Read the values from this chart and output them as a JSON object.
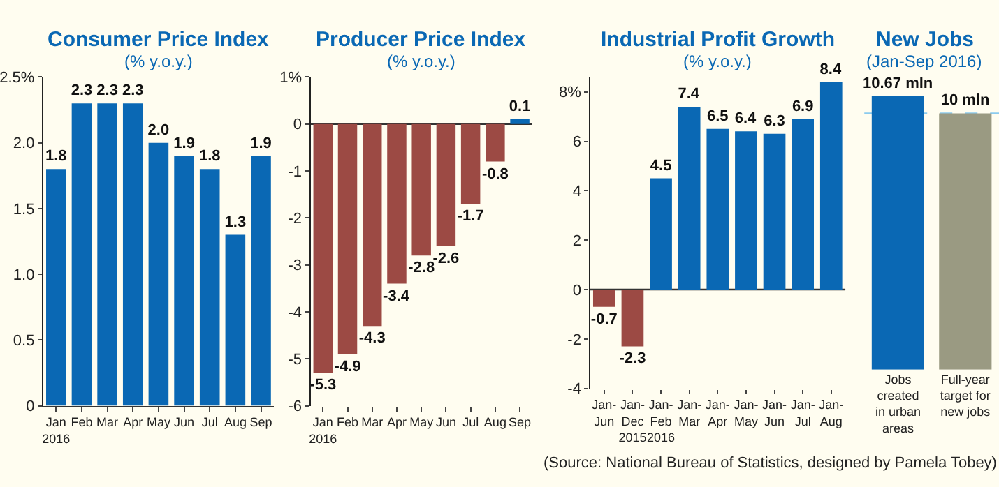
{
  "chart_data": [
    {
      "type": "bar",
      "title": "Consumer Price Index",
      "subtitle": "(% y.o.y.)",
      "categories": [
        "Jan\n2016",
        "Feb",
        "Mar",
        "Apr",
        "May",
        "Jun",
        "Jul",
        "Aug",
        "Sep"
      ],
      "values": [
        1.8,
        2.3,
        2.3,
        2.3,
        2.0,
        1.9,
        1.8,
        1.3,
        1.9
      ],
      "color": "#0a68b4",
      "value_labels": [
        "1.8",
        "2.3",
        "2.3",
        "2.3",
        "2.0",
        "1.9",
        "1.8",
        "1.3",
        "1.9"
      ],
      "ylim": [
        0,
        2.5
      ],
      "yticks": [
        0,
        0.5,
        {
          "value": 1.0,
          "label": "1.0"
        },
        1.5,
        {
          "value": 2.0,
          "label": "2.0"
        },
        {
          "value": 2.5,
          "label": "2.5%"
        }
      ],
      "grid": false
    },
    {
      "type": "bar",
      "title": "Producer Price Index",
      "subtitle": "(% y.o.y.)",
      "categories": [
        "Jan\n2016",
        "Feb",
        "Mar",
        "Apr",
        "May",
        "Jun",
        "Jul",
        "Aug",
        "Sep"
      ],
      "values": [
        -5.3,
        -4.9,
        -4.3,
        -3.4,
        -2.8,
        -2.6,
        -1.7,
        -0.8,
        0.1
      ],
      "colors": [
        "#9c4a44",
        "#9c4a44",
        "#9c4a44",
        "#9c4a44",
        "#9c4a44",
        "#9c4a44",
        "#9c4a44",
        "#9c4a44",
        "#0a68b4"
      ],
      "data_labels": true,
      "ylim": [
        -6,
        1
      ],
      "yticks": [
        -6,
        -5,
        -4,
        -3,
        -2,
        -1,
        0,
        {
          "value": 1,
          "label": "1%"
        }
      ],
      "grid": false,
      "ref_lines": [
        {
          "axis": "y",
          "value": 0,
          "color": "#333333"
        }
      ]
    },
    {
      "type": "bar",
      "title": "Industrial Profit Growth",
      "subtitle": "(% y.o.y.)",
      "categories": [
        "Jan-\nJun",
        "Jan-\nDec\n2015",
        "Jan-\nFeb\n2016",
        "Jan-\nMar",
        "Jan-\nApr",
        "Jan-\nMay",
        "Jan-\nJun",
        "Jan-\nJul",
        "Jan-\nAug"
      ],
      "values": [
        -0.7,
        -2.3,
        4.5,
        7.4,
        6.5,
        6.4,
        6.3,
        6.9,
        8.4
      ],
      "colors": [
        "#9c4a44",
        "#9c4a44",
        "#0a68b4",
        "#0a68b4",
        "#0a68b4",
        "#0a68b4",
        "#0a68b4",
        "#0a68b4",
        "#0a68b4"
      ],
      "data_labels": true,
      "ylim": [
        -4,
        8.6
      ],
      "yticks": [
        -4,
        -2,
        0,
        2,
        4,
        6,
        {
          "value": 8,
          "label": "8%"
        }
      ],
      "grid": false,
      "ref_lines": [
        {
          "axis": "y",
          "value": 0,
          "color": "#333333"
        }
      ],
      "annotations": [
        "(Source: National Bureau of Statistics, designed by Pamela Tobey)"
      ]
    },
    {
      "type": "bar",
      "title": "New Jobs",
      "subtitle": "(Jan-Sep 2016)",
      "categories": [
        "Jobs\ncreated\nin urban\nareas",
        "Full-year\ntarget for\nnew jobs"
      ],
      "values": [
        10.67,
        10
      ],
      "colors": [
        "#0a68b4",
        "#9a9a82"
      ],
      "value_labels": [
        "10.67 mln",
        "10 mln"
      ],
      "tick_labels": "x",
      "grid": false,
      "ref_lines": [
        {
          "axis": "y",
          "value": 10,
          "color": "#8ccbee",
          "line_style": "dashed"
        }
      ]
    }
  ]
}
